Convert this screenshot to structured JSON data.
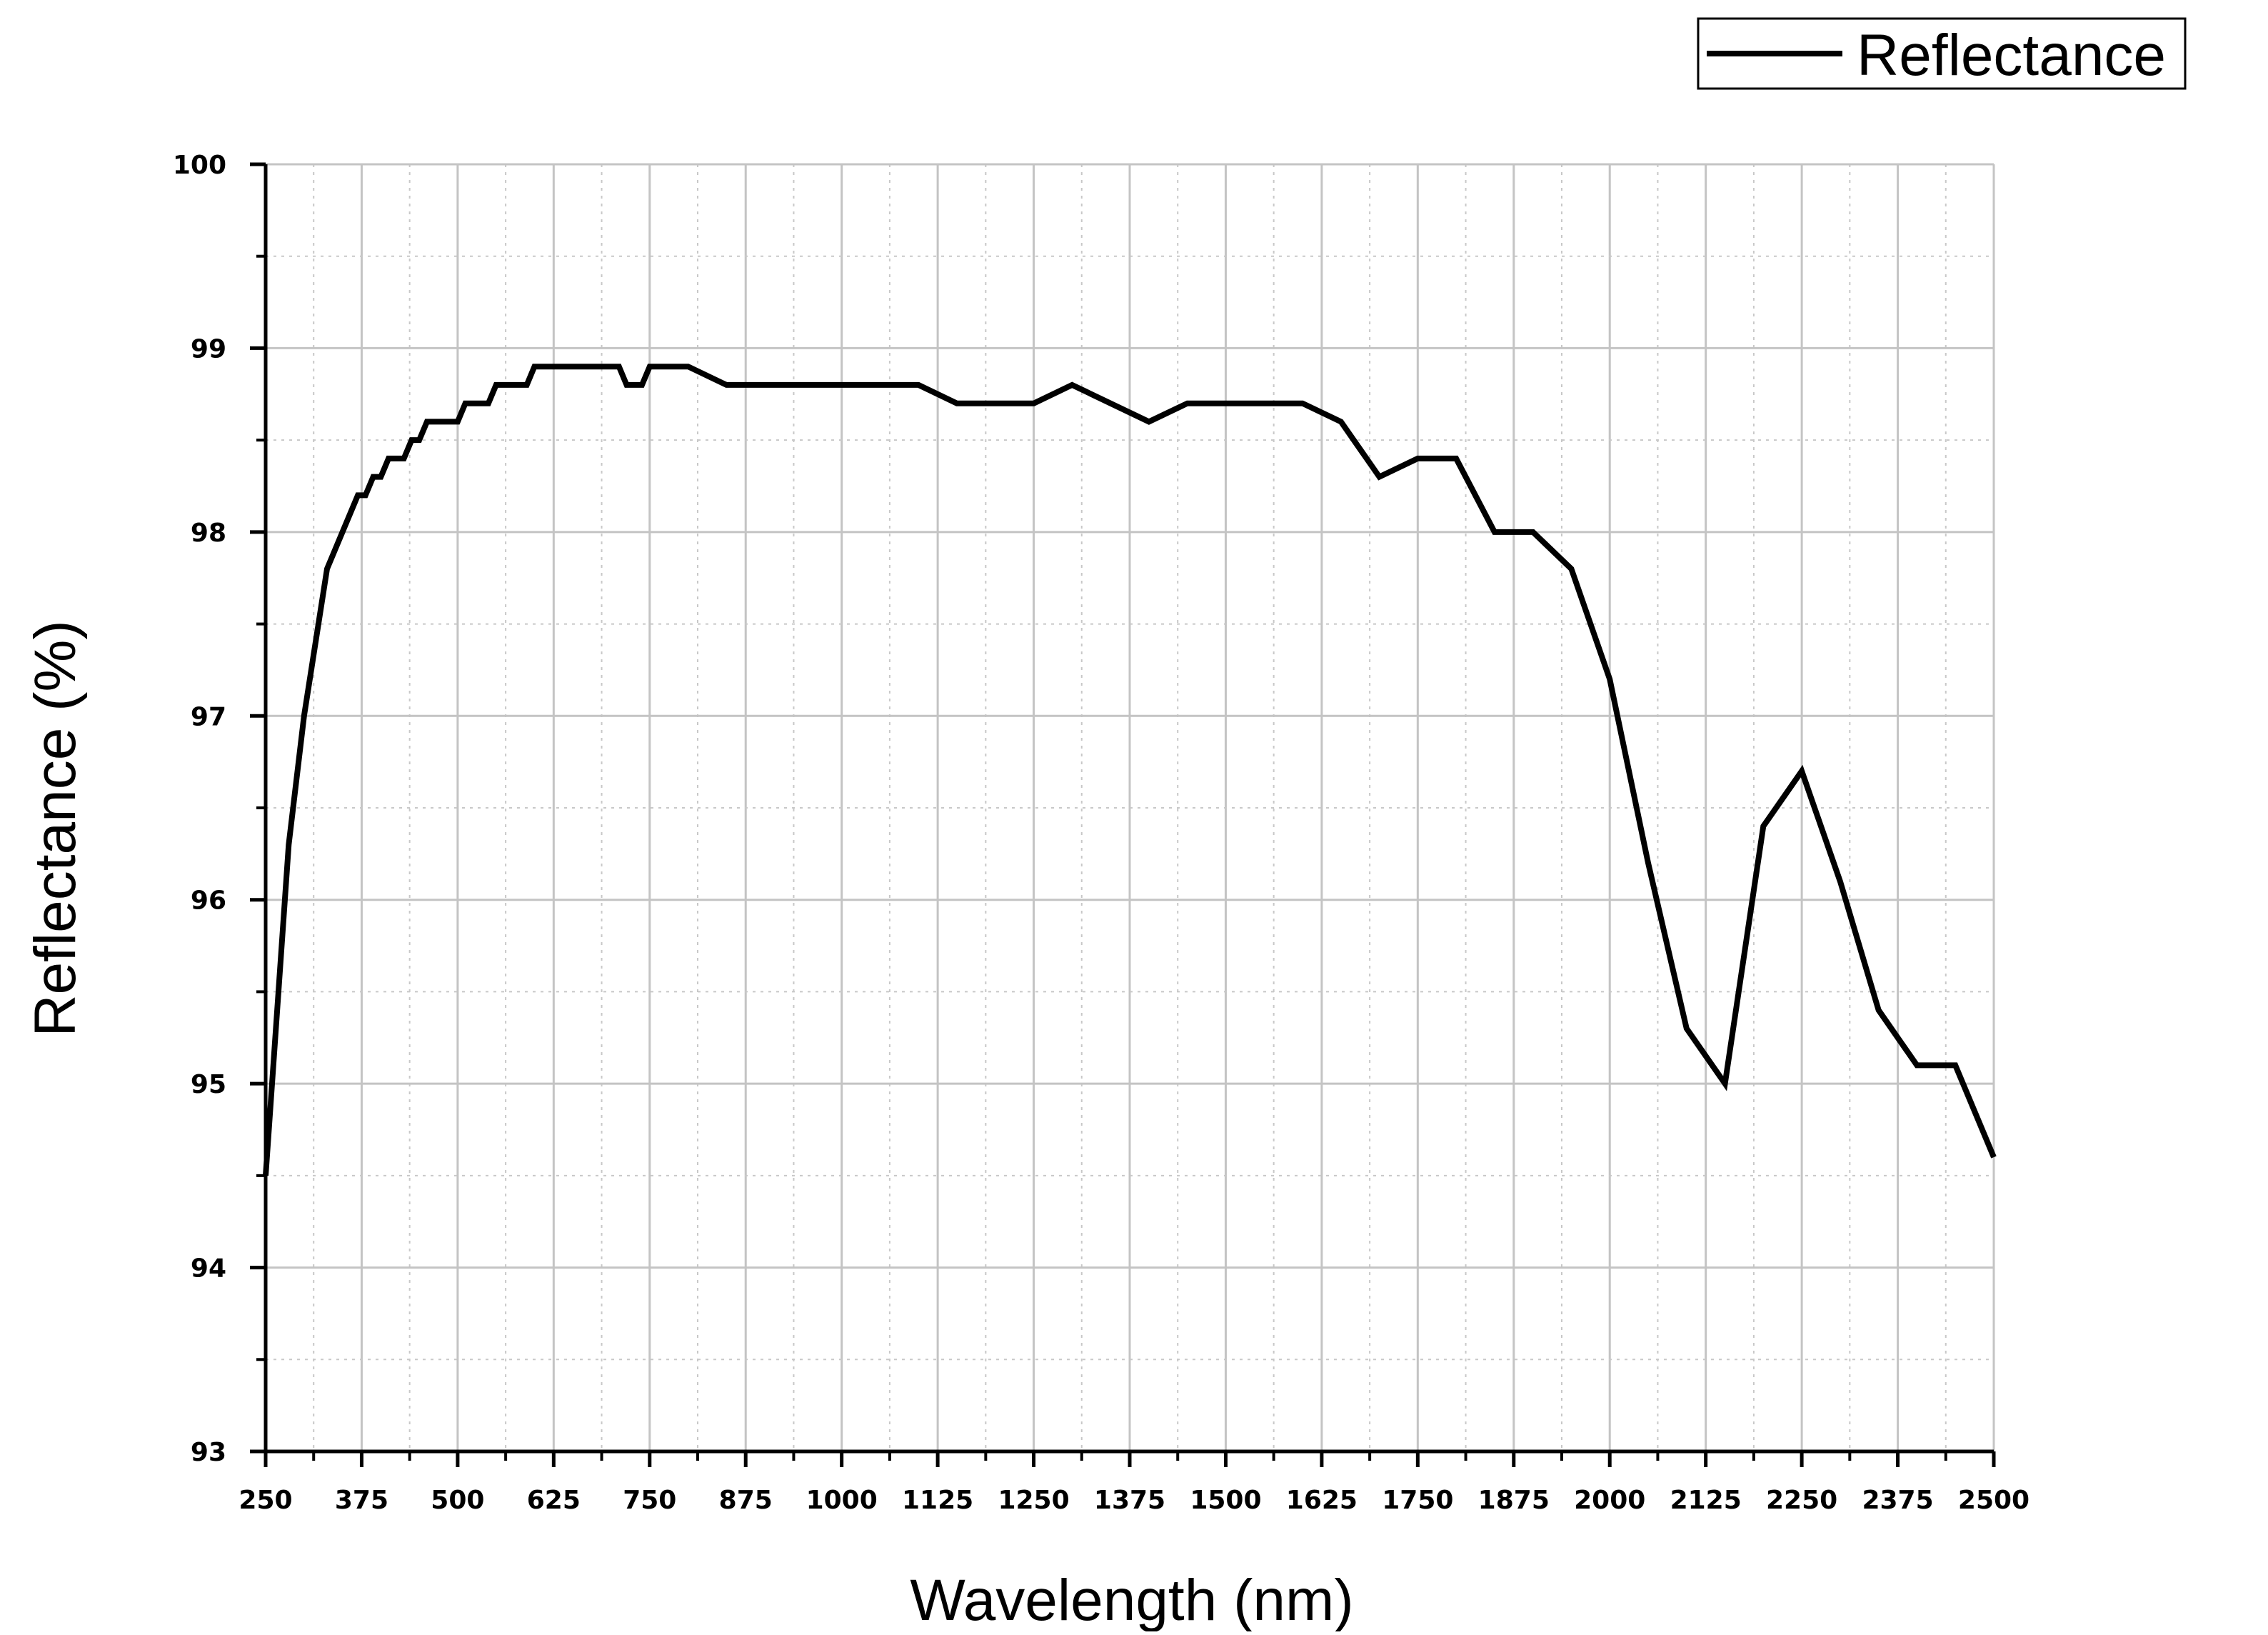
{
  "chart_data": {
    "type": "line",
    "xlabel": "Wavelength (nm)",
    "ylabel": "Reflectance (%)",
    "xlim": [
      250,
      2500
    ],
    "ylim": [
      93,
      100
    ],
    "x_ticks": [
      250,
      375,
      500,
      625,
      750,
      875,
      1000,
      1125,
      1250,
      1375,
      1500,
      1625,
      1750,
      1875,
      2000,
      2125,
      2250,
      2375,
      2500
    ],
    "y_ticks": [
      93,
      94,
      95,
      96,
      97,
      98,
      99,
      100
    ],
    "grid": true,
    "legend": "top-right",
    "series": [
      {
        "name": "Reflectance",
        "color": "#000000",
        "x": [
          250,
          280,
          300,
          330,
          370,
          380,
          390,
          400,
          410,
          430,
          440,
          450,
          460,
          480,
          500,
          510,
          540,
          550,
          590,
          600,
          710,
          720,
          740,
          750,
          800,
          850,
          1100,
          1150,
          1250,
          1300,
          1400,
          1450,
          1600,
          1650,
          1700,
          1750,
          1800,
          1850,
          1900,
          1950,
          2000,
          2050,
          2100,
          2150,
          2200,
          2250,
          2300,
          2350,
          2400,
          2450,
          2500
        ],
        "values": [
          94.5,
          96.3,
          97.0,
          97.8,
          98.2,
          98.2,
          98.3,
          98.3,
          98.4,
          98.4,
          98.5,
          98.5,
          98.6,
          98.6,
          98.6,
          98.7,
          98.7,
          98.8,
          98.8,
          98.9,
          98.9,
          98.8,
          98.8,
          98.9,
          98.9,
          98.8,
          98.8,
          98.7,
          98.7,
          98.8,
          98.6,
          98.7,
          98.7,
          98.6,
          98.3,
          98.4,
          98.4,
          98.0,
          98.0,
          97.8,
          97.2,
          96.2,
          95.3,
          95.0,
          96.4,
          96.7,
          96.1,
          95.4,
          95.1,
          95.1,
          94.6
        ]
      }
    ]
  }
}
